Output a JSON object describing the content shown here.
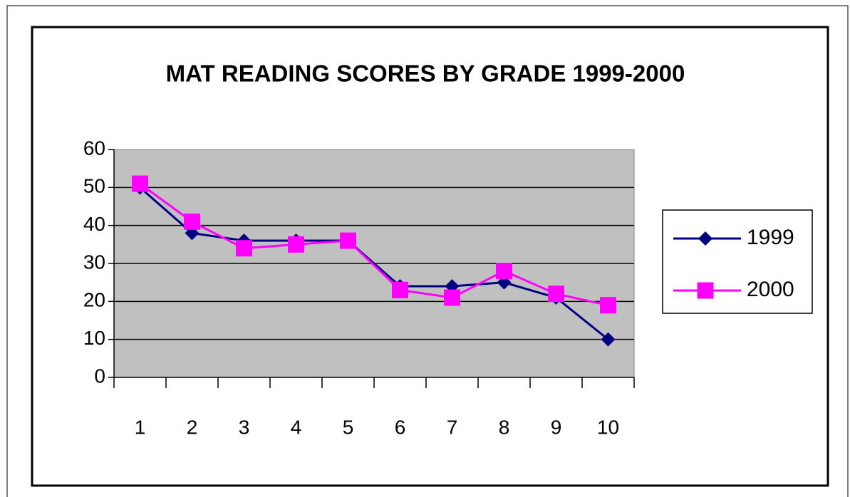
{
  "chart_data": {
    "type": "line",
    "title": "MAT READING SCORES BY GRADE 1999-2000",
    "categories": [
      "1",
      "2",
      "3",
      "4",
      "5",
      "6",
      "7",
      "8",
      "9",
      "10"
    ],
    "series": [
      {
        "name": "1999",
        "color": "#000080",
        "marker": "diamond",
        "values": [
          50,
          38,
          36,
          36,
          36,
          24,
          24,
          25,
          21,
          10
        ]
      },
      {
        "name": "2000",
        "color": "#ff00ff",
        "marker": "square",
        "values": [
          51,
          41,
          34,
          35,
          36,
          23,
          21,
          28,
          22,
          19
        ]
      }
    ],
    "ylim": [
      0,
      60
    ],
    "yticks": [
      0,
      10,
      20,
      30,
      40,
      50,
      60
    ],
    "grid": true,
    "legend": "right"
  }
}
